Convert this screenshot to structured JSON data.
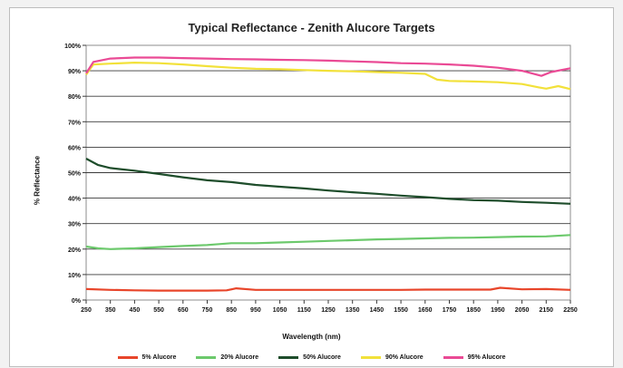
{
  "chart_data": {
    "type": "line",
    "title": "Typical Reflectance - Zenith Alucore Targets",
    "xlabel": "Wavelength (nm)",
    "ylabel": "% Reflectance",
    "xlim": [
      250,
      2250
    ],
    "ylim": [
      0,
      100
    ],
    "x_ticks": [
      250,
      350,
      450,
      550,
      650,
      750,
      850,
      950,
      1050,
      1150,
      1250,
      1350,
      1450,
      1550,
      1650,
      1750,
      1850,
      1950,
      2050,
      2150,
      2250
    ],
    "y_ticks": [
      0,
      10,
      20,
      30,
      40,
      50,
      60,
      70,
      80,
      90,
      100
    ],
    "y_tick_format": "%",
    "grid": "horizontal",
    "legend_position": "bottom",
    "series": [
      {
        "name": "5% Alucore",
        "color": "#e8452a",
        "x": [
          250,
          350,
          450,
          550,
          650,
          750,
          830,
          870,
          950,
          1050,
          1150,
          1250,
          1350,
          1450,
          1550,
          1650,
          1750,
          1850,
          1920,
          1960,
          2050,
          2150,
          2250
        ],
        "y": [
          4.3,
          4.0,
          3.8,
          3.7,
          3.7,
          3.7,
          3.8,
          4.6,
          4.0,
          4.0,
          4.0,
          4.0,
          4.0,
          4.0,
          4.0,
          4.1,
          4.1,
          4.1,
          4.1,
          4.8,
          4.2,
          4.3,
          4.0
        ]
      },
      {
        "name": "20% Alucore",
        "color": "#6cc96c",
        "x": [
          250,
          300,
          350,
          450,
          550,
          650,
          750,
          850,
          950,
          1050,
          1150,
          1250,
          1350,
          1450,
          1550,
          1650,
          1750,
          1850,
          1950,
          2050,
          2150,
          2250
        ],
        "y": [
          21.0,
          20.3,
          20.0,
          20.3,
          20.8,
          21.2,
          21.6,
          22.3,
          22.3,
          22.6,
          22.9,
          23.2,
          23.5,
          23.8,
          24.0,
          24.2,
          24.4,
          24.5,
          24.7,
          24.9,
          25.0,
          25.5
        ]
      },
      {
        "name": "50% Alucore",
        "color": "#1e4d2b",
        "x": [
          250,
          300,
          350,
          450,
          550,
          650,
          750,
          850,
          950,
          1050,
          1150,
          1250,
          1350,
          1450,
          1550,
          1650,
          1750,
          1850,
          1950,
          2050,
          2150,
          2250
        ],
        "y": [
          55.5,
          53.0,
          51.8,
          50.8,
          49.5,
          48.2,
          47.0,
          46.3,
          45.2,
          44.5,
          43.8,
          43.0,
          42.3,
          41.7,
          41.0,
          40.4,
          39.7,
          39.2,
          39.0,
          38.5,
          38.2,
          37.8
        ]
      },
      {
        "name": "90% Alucore",
        "color": "#f2e13a",
        "x": [
          250,
          280,
          350,
          450,
          550,
          650,
          750,
          850,
          950,
          1050,
          1150,
          1250,
          1350,
          1450,
          1550,
          1650,
          1700,
          1750,
          1850,
          1950,
          2050,
          2120,
          2150,
          2200,
          2250
        ],
        "y": [
          88.5,
          92.5,
          92.8,
          93.2,
          93.0,
          92.5,
          91.8,
          91.2,
          90.8,
          90.6,
          90.3,
          90.0,
          89.8,
          89.5,
          89.2,
          88.8,
          86.5,
          86.0,
          85.8,
          85.5,
          84.8,
          83.5,
          83.0,
          84.0,
          82.8
        ]
      },
      {
        "name": "95% Alucore",
        "color": "#ea4a95",
        "x": [
          250,
          280,
          350,
          450,
          550,
          650,
          750,
          850,
          950,
          1050,
          1150,
          1250,
          1350,
          1450,
          1550,
          1650,
          1750,
          1850,
          1950,
          2050,
          2130,
          2170,
          2250
        ],
        "y": [
          89.0,
          93.5,
          94.8,
          95.2,
          95.2,
          95.0,
          94.8,
          94.6,
          94.5,
          94.3,
          94.2,
          94.0,
          93.7,
          93.4,
          93.0,
          92.8,
          92.5,
          92.0,
          91.2,
          90.0,
          88.0,
          89.5,
          91.0
        ]
      }
    ]
  }
}
